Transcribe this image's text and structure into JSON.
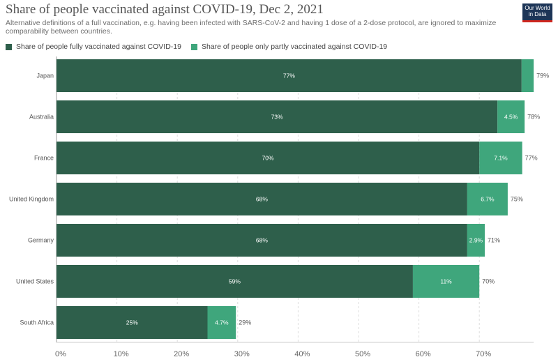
{
  "chart_data": {
    "type": "bar",
    "orientation": "horizontal",
    "stacked": true,
    "title": "Share of people vaccinated against COVID-19, Dec 2, 2021",
    "subtitle": "Alternative definitions of a full vaccination, e.g. having been infected with SARS-CoV-2 and having 1 dose of a 2-dose protocol, are ignored to maximize comparability between countries.",
    "categories": [
      "Japan",
      "Australia",
      "France",
      "United Kingdom",
      "Germany",
      "United States",
      "South Africa"
    ],
    "series": [
      {
        "name": "Share of people fully vaccinated against COVID-19",
        "color": "#2e5f4b",
        "values": [
          77,
          73,
          70,
          68,
          68,
          59,
          25
        ],
        "labels": [
          "77%",
          "73%",
          "70%",
          "68%",
          "68%",
          "59%",
          "25%"
        ]
      },
      {
        "name": "Share of people only partly vaccinated against COVID-19",
        "color": "#3fa67c",
        "values": [
          2,
          4.5,
          7.1,
          6.7,
          2.9,
          11,
          4.7
        ],
        "labels": [
          "",
          "4.5%",
          "7.1%",
          "6.7%",
          "2.9%",
          "11%",
          "4.7%"
        ]
      }
    ],
    "totals": [
      "79%",
      "78%",
      "77%",
      "75%",
      "71%",
      "70%",
      "29%"
    ],
    "xlim": [
      0,
      79
    ],
    "xticks": [
      0,
      10,
      20,
      30,
      40,
      50,
      60,
      70
    ],
    "xtick_labels": [
      "0%",
      "10%",
      "20%",
      "30%",
      "40%",
      "50%",
      "60%",
      "70%"
    ],
    "grid": true,
    "legend": "top-left"
  },
  "logo": {
    "line1": "Our World",
    "line2": "in Data"
  }
}
